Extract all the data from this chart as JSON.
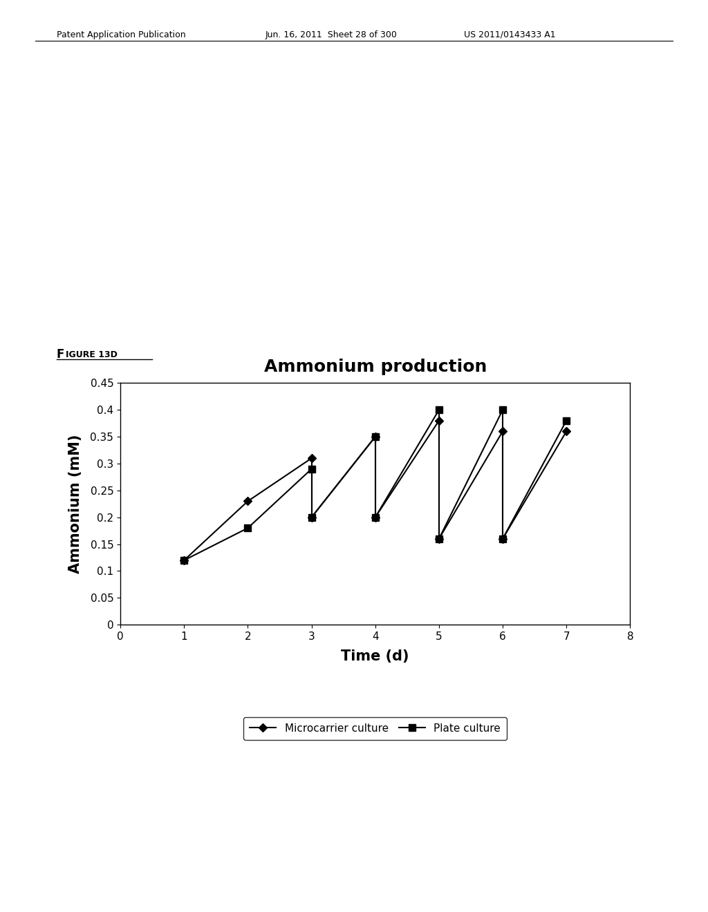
{
  "title": "Ammonium production",
  "xlabel": "Time (d)",
  "ylabel": "Ammonium (mM)",
  "figure_label_F": "F",
  "figure_label_rest": "IGURE 13D",
  "header_left": "Patent Application Publication",
  "header_mid": "Jun. 16, 2011  Sheet 28 of 300",
  "header_right": "US 2011/0143433 A1",
  "mc_segments": [
    [
      [
        1,
        2,
        3
      ],
      [
        0.12,
        0.23,
        0.31
      ]
    ],
    [
      [
        3,
        4
      ],
      [
        0.2,
        0.35
      ]
    ],
    [
      [
        4,
        5
      ],
      [
        0.2,
        0.38
      ]
    ],
    [
      [
        5,
        6
      ],
      [
        0.16,
        0.36
      ]
    ],
    [
      [
        6,
        7
      ],
      [
        0.16,
        0.36
      ]
    ]
  ],
  "pc_segments": [
    [
      [
        1,
        2,
        3
      ],
      [
        0.12,
        0.18,
        0.29
      ]
    ],
    [
      [
        3,
        4
      ],
      [
        0.2,
        0.35
      ]
    ],
    [
      [
        4,
        5
      ],
      [
        0.2,
        0.4
      ]
    ],
    [
      [
        5,
        6
      ],
      [
        0.16,
        0.4
      ]
    ],
    [
      [
        6,
        7
      ],
      [
        0.16,
        0.38
      ]
    ]
  ],
  "mc_drops": [
    [
      [
        3,
        3
      ],
      [
        0.31,
        0.2
      ]
    ],
    [
      [
        4,
        4
      ],
      [
        0.35,
        0.2
      ]
    ],
    [
      [
        5,
        5
      ],
      [
        0.38,
        0.16
      ]
    ],
    [
      [
        6,
        6
      ],
      [
        0.36,
        0.16
      ]
    ]
  ],
  "pc_drops": [
    [
      [
        3,
        3
      ],
      [
        0.29,
        0.2
      ]
    ],
    [
      [
        4,
        4
      ],
      [
        0.35,
        0.2
      ]
    ],
    [
      [
        5,
        5
      ],
      [
        0.4,
        0.16
      ]
    ],
    [
      [
        6,
        6
      ],
      [
        0.4,
        0.16
      ]
    ]
  ],
  "xlim": [
    0,
    8
  ],
  "ylim": [
    0,
    0.45
  ],
  "xticks": [
    0,
    1,
    2,
    3,
    4,
    5,
    6,
    7,
    8
  ],
  "yticks": [
    0,
    0.05,
    0.1,
    0.15,
    0.2,
    0.25,
    0.3,
    0.35,
    0.4,
    0.45
  ],
  "ytick_labels": [
    "0",
    "0.05",
    "0.1",
    "0.15",
    "0.2",
    "0.25",
    "0.3",
    "0.35",
    "0.4",
    "0.45"
  ],
  "legend_labels": [
    "Microcarrier culture",
    "Plate culture"
  ],
  "title_fontsize": 18,
  "axis_label_fontsize": 15,
  "tick_fontsize": 11,
  "legend_fontsize": 11,
  "header_fontsize": 9,
  "fig_label_fontsize": 11
}
